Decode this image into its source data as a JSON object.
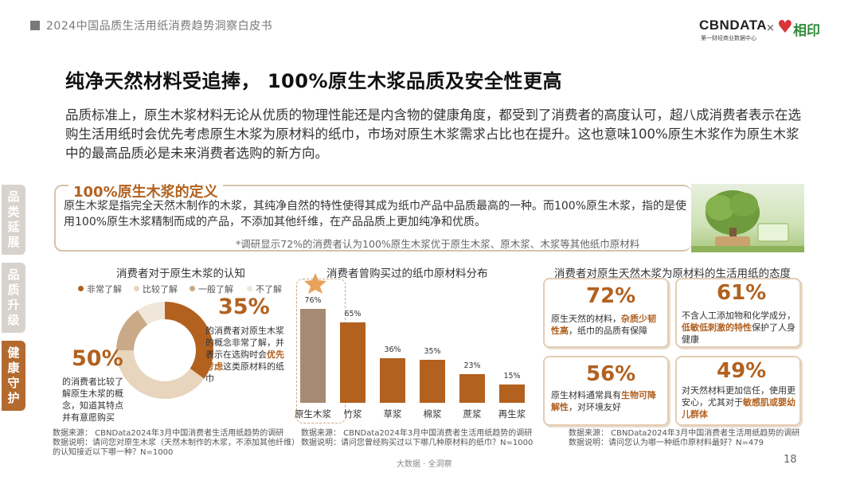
{
  "header": {
    "report_title": "2024中国品质生活用纸消费趋势洞察白皮书",
    "logo_cbn": "CBNDATA",
    "logo_cbn_sub": "第一财经商业数据中心",
    "logo_times": "×",
    "logo_partner": "相印"
  },
  "title": "纯净天然材料受追捧， 100%原生木浆品质及安全性更高",
  "intro": "品质标准上，原生木浆材料无论从优质的物理性能还是内含物的健康角度，都受到了消费者的高度认可，超八成消费者表示在选购生活用纸时会优先考虑原生木浆为原材料的纸巾，市场对原生木浆需求占比也在提升。这也意味100%原生木浆作为原生木浆中的最高品质必是未来消费者选购的新方向。",
  "side_tabs": [
    {
      "label": "品类延展"
    },
    {
      "label": "品质升级"
    },
    {
      "label": "健康守护"
    }
  ],
  "definition": {
    "title": "100%原生木浆的定义",
    "text": "原生木浆是指完全天然木制作的木浆，其纯净自然的特性使得其成为纸巾产品中品质最高的一种。而100%原生木浆，指的是使用100%原生木浆精制而成的产品，不添加其他纤维，在产品品质上更加纯净和优质。",
    "note": "*调研显示72%的消费者认为100%原生木浆优于原生木浆、原木浆、木浆等其他纸巾原材料"
  },
  "awareness": {
    "title": "消费者对于原生木浆的认知",
    "legend": [
      {
        "label": "非常了解",
        "color": "#b2611f"
      },
      {
        "label": "比较了解",
        "color": "#e8d5bd"
      },
      {
        "label": "一般了解",
        "color": "#c9a988"
      },
      {
        "label": "不了解",
        "color": "#f0e6da"
      }
    ],
    "pct_very": "35%",
    "desc_very_a": "的消费者对原生木浆的概念非常了解，并表示在选购时会",
    "desc_very_bold": "优先考虑",
    "desc_very_b": "这类原材料的纸巾",
    "pct_some": "50%",
    "desc_some": "的消费者比较了解原生木浆的概念，知道其特点并有意愿购买",
    "source": "数据来源： CBNData2024年3月中国消费者生活用纸趋势的调研",
    "note": "数据说明：请问您对原生木浆（天然木制作的木浆，不添加其他纤维）的认知接近以下哪一种？N=1000"
  },
  "materials": {
    "title": "消费者曾购买过的纸巾原材料分布",
    "source": "数据来源： CBNData2024年3月中国消费者生活用纸趋势的调研",
    "note": "数据说明：请问您曾经购买过以下哪几种原材料的纸巾？N=1000"
  },
  "chart_data": {
    "type": "bar",
    "title": "消费者曾购买过的纸巾原材料分布",
    "categories": [
      "原生木浆",
      "竹浆",
      "草浆",
      "棉浆",
      "蔗浆",
      "再生浆"
    ],
    "values": [
      76,
      65,
      36,
      35,
      23,
      15
    ],
    "value_labels": [
      "76%",
      "65%",
      "36%",
      "35%",
      "23%",
      "15%"
    ],
    "ylim": [
      0,
      100
    ],
    "grid": false,
    "highlight_color": "#a78a72",
    "bar_color": "#b2611f"
  },
  "attitude": {
    "title": "消费者对原生天然木浆为原材料的生活用纸的态度",
    "cards": [
      {
        "pct": "72%",
        "a": "原生天然的材料，",
        "bold": "杂质少韧性高",
        "b": "，纸巾的品质有保障"
      },
      {
        "pct": "61%",
        "a": "不含人工添加物和化学成分，",
        "bold": "低敏低刺激的特性",
        "b": "保护了人身健康"
      },
      {
        "pct": "56%",
        "a": "原生材料通常具有",
        "bold": "生物可降解性",
        "b": "，对环境友好"
      },
      {
        "pct": "49%",
        "a": "对天然材料更加信任，使用更安心，尤其对于",
        "bold": "敏感肌或婴幼儿群体",
        "b": ""
      }
    ],
    "source": "数据来源： CBNData2024年3月中国消费者生活用纸趋势的调研",
    "note": "数据说明：请问您认为哪一种纸巾原材料最好？N=479"
  },
  "footer": {
    "text": "大数据 · 全洞察",
    "page": "18"
  },
  "icons": [
    "star-icon",
    "tree-product-image"
  ]
}
